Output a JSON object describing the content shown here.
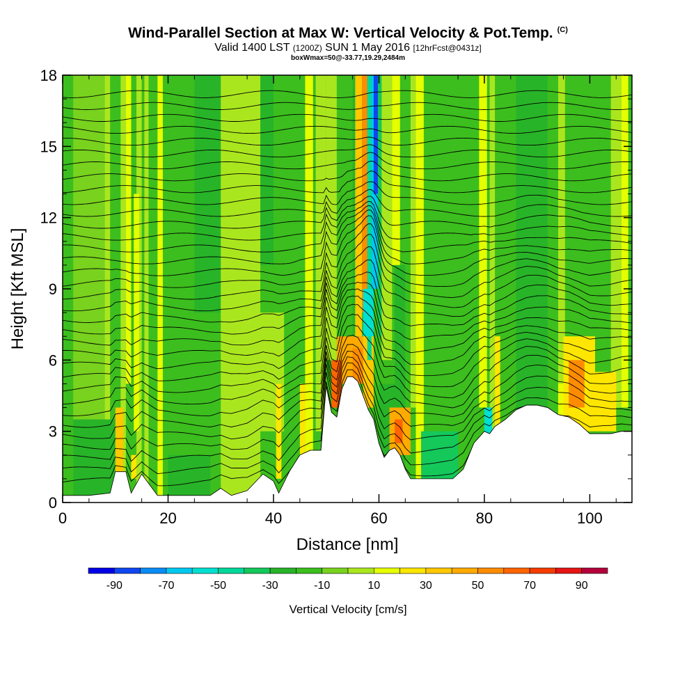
{
  "header": {
    "title": "Wind-Parallel Section at Max W: Vertical Velocity & Pot.Temp.",
    "title_mark": "(C)",
    "valid_prefix": "Valid 1400 LST",
    "valid_zulu": "(1200Z)",
    "valid_date": "SUN 1 May 2016",
    "forecast": "[12hrFcst@0431z]",
    "box_info": "boxWmax=50@-33.77,19.29,2484m"
  },
  "chart_data": {
    "type": "heatmap",
    "xlabel": "Distance [nm]",
    "ylabel": "Height [Kft MSL]",
    "xlim": [
      0,
      108
    ],
    "ylim": [
      0,
      18
    ],
    "x_ticks": [
      0,
      20,
      40,
      60,
      80,
      100
    ],
    "x_tick_labels": [
      "0",
      "20",
      "40",
      "60",
      "80",
      "100"
    ],
    "y_ticks": [
      0,
      3,
      6,
      9,
      12,
      15,
      18
    ],
    "y_tick_labels": [
      "0",
      "3",
      "6",
      "9",
      "12",
      "15",
      "18"
    ],
    "colorbar": {
      "title": "Vertical Velocity [cm/s]",
      "levels": [
        -100,
        -90,
        -80,
        -70,
        -60,
        -50,
        -40,
        -30,
        -20,
        -10,
        0,
        10,
        20,
        30,
        40,
        50,
        60,
        70,
        80,
        90,
        100
      ],
      "tick_values": [
        -90,
        -70,
        -50,
        -30,
        -10,
        10,
        30,
        50,
        70,
        90
      ],
      "tick_labels": [
        "-90",
        "-70",
        "-50",
        "-30",
        "-10",
        "10",
        "30",
        "50",
        "70",
        "90"
      ],
      "colors": [
        "#0000e6",
        "#0f46f0",
        "#0a8cf5",
        "#00c8f0",
        "#00e0d0",
        "#00d89a",
        "#14c85a",
        "#28b428",
        "#3cbe1e",
        "#78d21e",
        "#aae61e",
        "#e6ff00",
        "#ffe600",
        "#ffc800",
        "#ffaa00",
        "#ff8c00",
        "#ff6400",
        "#f53c00",
        "#e61414",
        "#b4003c"
      ]
    },
    "terrain": {
      "x": [
        0,
        5,
        9,
        10,
        12,
        13,
        15,
        18,
        22,
        26,
        28,
        30,
        32,
        35,
        38,
        40,
        41,
        43,
        45,
        46,
        47,
        49,
        50,
        51,
        52,
        53,
        54,
        55,
        56,
        57,
        58,
        59,
        60,
        61,
        62,
        63,
        64,
        65,
        66,
        68,
        70,
        72,
        74,
        76,
        78,
        80,
        81,
        82,
        84,
        86,
        88,
        90,
        92,
        94,
        96,
        98,
        100,
        102,
        104,
        106,
        108
      ],
      "height": [
        0.3,
        0.3,
        0.4,
        1.3,
        1.3,
        0.4,
        1.2,
        0.3,
        0.3,
        0.3,
        0.3,
        0.6,
        0.3,
        0.5,
        1.2,
        0.9,
        0.4,
        1.3,
        2.0,
        2.1,
        2.2,
        2.2,
        4.9,
        3.8,
        3.6,
        4.8,
        5.3,
        5.3,
        5.1,
        4.5,
        3.9,
        3.5,
        2.5,
        1.9,
        2.2,
        2.3,
        2.0,
        1.4,
        1.0,
        1.0,
        1.0,
        1.0,
        1.0,
        1.4,
        2.5,
        3.0,
        2.9,
        3.2,
        3.5,
        3.9,
        4.1,
        4.1,
        4.0,
        3.7,
        3.6,
        3.3,
        2.9,
        2.9,
        2.9,
        3.0,
        3.0
      ]
    },
    "velocity_cells": [
      {
        "x": [
          0,
          108
        ],
        "h": [
          0,
          18
        ],
        "w": -15
      },
      {
        "x": [
          2,
          8
        ],
        "h": [
          0,
          18
        ],
        "w": -10
      },
      {
        "x": [
          18,
          24
        ],
        "h": [
          1,
          18
        ],
        "w": -20
      },
      {
        "x": [
          25,
          30
        ],
        "h": [
          8,
          18
        ],
        "w": -25
      },
      {
        "x": [
          30,
          37
        ],
        "h": [
          0,
          18
        ],
        "w": 5
      },
      {
        "x": [
          37,
          40
        ],
        "h": [
          10,
          18
        ],
        "w": -25
      },
      {
        "x": [
          55,
          58
        ],
        "h": [
          5,
          18
        ],
        "w": -25
      },
      {
        "x": [
          72,
          78
        ],
        "h": [
          1,
          18
        ],
        "w": -20
      },
      {
        "x": [
          86,
          92
        ],
        "h": [
          3,
          18
        ],
        "w": -25
      },
      {
        "x": [
          100,
          108
        ],
        "h": [
          10,
          18
        ],
        "w": -20
      },
      {
        "x": [
          8,
          9
        ],
        "h": [
          0,
          18
        ],
        "w": 5
      },
      {
        "x": [
          11,
          12
        ],
        "h": [
          0,
          18
        ],
        "w": 5
      },
      {
        "x": [
          14,
          15
        ],
        "h": [
          0,
          18
        ],
        "w": 5
      },
      {
        "x": [
          15.5,
          16.3
        ],
        "h": [
          0,
          18
        ],
        "w": 5
      },
      {
        "x": [
          36,
          37.5
        ],
        "h": [
          0,
          18
        ],
        "w": 5
      },
      {
        "x": [
          46,
          47.5
        ],
        "h": [
          2,
          18
        ],
        "w": 15
      },
      {
        "x": [
          48,
          50
        ],
        "h": [
          3,
          18
        ],
        "w": 5
      },
      {
        "x": [
          50,
          52
        ],
        "h": [
          6,
          18
        ],
        "w": 5
      },
      {
        "x": [
          66,
          67
        ],
        "h": [
          4,
          18
        ],
        "w": 5
      },
      {
        "x": [
          67,
          68.5
        ],
        "h": [
          1,
          18
        ],
        "w": 15
      },
      {
        "x": [
          79,
          80.5
        ],
        "h": [
          4,
          18
        ],
        "w": 15
      },
      {
        "x": [
          81,
          82
        ],
        "h": [
          3,
          18
        ],
        "w": 5
      },
      {
        "x": [
          94,
          95.3
        ],
        "h": [
          4,
          18
        ],
        "w": 5
      },
      {
        "x": [
          104,
          106
        ],
        "h": [
          4,
          18
        ],
        "w": 5
      },
      {
        "x": [
          106,
          107.3
        ],
        "h": [
          4,
          18
        ],
        "w": 15
      },
      {
        "x": [
          18,
          19
        ],
        "h": [
          0,
          18
        ],
        "w": 15
      },
      {
        "x": [
          12,
          13
        ],
        "h": [
          5,
          18
        ],
        "w": 15
      },
      {
        "x": [
          13.5,
          14.5
        ],
        "h": [
          3,
          13
        ],
        "w": 15
      },
      {
        "x": [
          60.5,
          62.5
        ],
        "h": [
          6,
          18
        ],
        "w": 5
      },
      {
        "x": [
          62.5,
          64
        ],
        "h": [
          10,
          18
        ],
        "w": 15
      },
      {
        "x": [
          63,
          65
        ],
        "h": [
          5,
          10
        ],
        "w": -25
      },
      {
        "x": [
          36,
          42
        ],
        "h": [
          3,
          8
        ],
        "w": 5
      },
      {
        "x": [
          2,
          10
        ],
        "h": [
          0,
          3.5
        ],
        "w": -25
      },
      {
        "x": [
          20,
          28
        ],
        "h": [
          0,
          2
        ],
        "w": -25
      },
      {
        "x": [
          60,
          65
        ],
        "h": [
          0,
          5
        ],
        "w": -25
      },
      {
        "x": [
          68,
          75
        ],
        "h": [
          1,
          3
        ],
        "w": -35
      },
      {
        "x": [
          94,
          98
        ],
        "h": [
          3,
          5
        ],
        "w": 15
      },
      {
        "x": [
          10,
          11.5
        ],
        "h": [
          1,
          4
        ],
        "w": 35
      },
      {
        "x": [
          13,
          14
        ],
        "h": [
          1,
          2
        ],
        "w": 25
      },
      {
        "x": [
          40.5,
          41.5
        ],
        "h": [
          1,
          5
        ],
        "w": 25
      },
      {
        "x": [
          45,
          46
        ],
        "h": [
          2,
          5
        ],
        "w": 25
      },
      {
        "x": [
          52,
          58
        ],
        "h": [
          5,
          7
        ],
        "w": 45
      },
      {
        "x": [
          51,
          53
        ],
        "h": [
          4,
          6
        ],
        "w": 65
      },
      {
        "x": [
          55,
          58
        ],
        "h": [
          5,
          6.5
        ],
        "w": 55
      },
      {
        "x": [
          57,
          59
        ],
        "h": [
          4,
          7
        ],
        "w": 35
      },
      {
        "x": [
          62,
          66
        ],
        "h": [
          2,
          4
        ],
        "w": 45
      },
      {
        "x": [
          63,
          64.5
        ],
        "h": [
          2.5,
          3.5
        ],
        "w": 65
      },
      {
        "x": [
          95,
          101
        ],
        "h": [
          3,
          7
        ],
        "w": 25
      },
      {
        "x": [
          96,
          99
        ],
        "h": [
          4,
          6
        ],
        "w": 55
      },
      {
        "x": [
          101,
          105
        ],
        "h": [
          3,
          5.5
        ],
        "w": 25
      },
      {
        "x": [
          55.5,
          56.8
        ],
        "h": [
          7,
          18
        ],
        "w": 35
      },
      {
        "x": [
          56.8,
          57.8
        ],
        "h": [
          8,
          18
        ],
        "w": 55
      },
      {
        "x": [
          57.8,
          58.6
        ],
        "h": [
          6,
          18
        ],
        "w": -45
      },
      {
        "x": [
          58.6,
          59.8
        ],
        "h": [
          9,
          18
        ],
        "w": -65
      },
      {
        "x": [
          59,
          60
        ],
        "h": [
          13,
          18
        ],
        "w": -85
      },
      {
        "x": [
          59.8,
          60.5
        ],
        "h": [
          7,
          18
        ],
        "w": -35
      },
      {
        "x": [
          57,
          59
        ],
        "h": [
          7,
          9
        ],
        "w": -55
      },
      {
        "x": [
          80,
          81.5
        ],
        "h": [
          2.5,
          4
        ],
        "w": -55
      },
      {
        "x": [
          82,
          83
        ],
        "h": [
          3,
          7
        ],
        "w": 25
      }
    ]
  }
}
